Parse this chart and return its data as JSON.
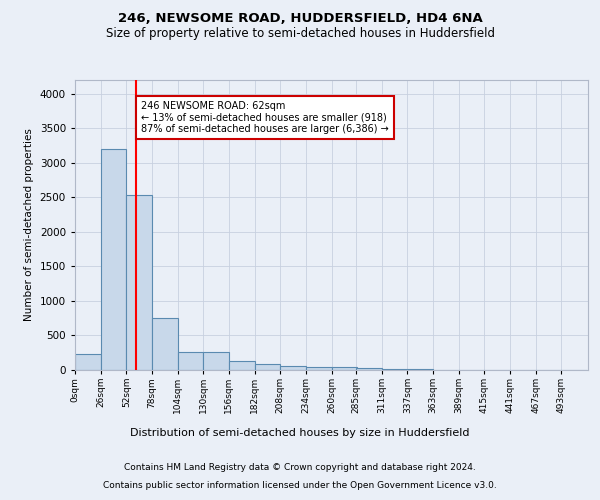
{
  "title1": "246, NEWSOME ROAD, HUDDERSFIELD, HD4 6NA",
  "title2": "Size of property relative to semi-detached houses in Huddersfield",
  "xlabel": "Distribution of semi-detached houses by size in Huddersfield",
  "ylabel": "Number of semi-detached properties",
  "footnote1": "Contains HM Land Registry data © Crown copyright and database right 2024.",
  "footnote2": "Contains public sector information licensed under the Open Government Licence v3.0.",
  "subject_size": 62,
  "subject_label": "246 NEWSOME ROAD: 62sqm",
  "pct_smaller": 13,
  "count_smaller": 918,
  "pct_larger": 87,
  "count_larger": "6,386",
  "bin_width": 26,
  "bin_starts": [
    0,
    26,
    52,
    78,
    104,
    130,
    156,
    182,
    208,
    234,
    260,
    285,
    311,
    337,
    363,
    389,
    415,
    441,
    467,
    493
  ],
  "bar_values": [
    230,
    3200,
    2540,
    760,
    255,
    255,
    130,
    80,
    55,
    50,
    50,
    30,
    20,
    10,
    5,
    5,
    3,
    2,
    2,
    2
  ],
  "bar_color": "#c8d8ea",
  "bar_edge_color": "#5a8ab0",
  "bar_edge_width": 0.8,
  "red_line_x": 62,
  "annotation_box_facecolor": "#ffffff",
  "annotation_border_color": "#cc0000",
  "ylim": [
    0,
    4200
  ],
  "yticks": [
    0,
    500,
    1000,
    1500,
    2000,
    2500,
    3000,
    3500,
    4000
  ],
  "grid_color": "#c8d0e0",
  "bg_color": "#eaeff7",
  "title1_fontsize": 9.5,
  "title2_fontsize": 8.5,
  "ylabel_fontsize": 7.5,
  "xlabel_fontsize": 8.0,
  "footnote_fontsize": 6.5,
  "ytick_fontsize": 7.5,
  "xtick_fontsize": 6.5,
  "ann_fontsize": 7.0
}
